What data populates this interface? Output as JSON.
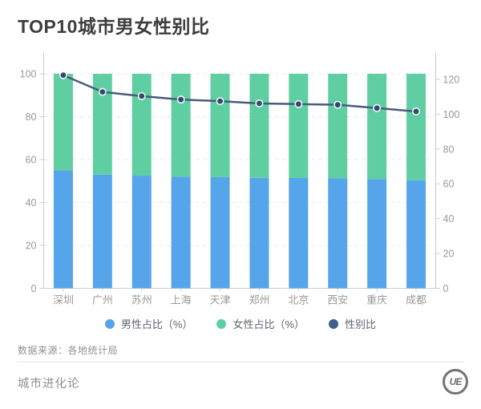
{
  "page": {
    "title": "TOP10城市男女性别比"
  },
  "chart_data": {
    "type": "bar",
    "subtype": "stacked-bar-with-line-overlay",
    "categories": [
      "深圳",
      "广州",
      "苏州",
      "上海",
      "天津",
      "郑州",
      "北京",
      "西安",
      "重庆",
      "成都"
    ],
    "series": [
      {
        "name": "男性占比（%）",
        "type": "bar",
        "stack": "total",
        "axis": "left",
        "color": "#56a4ea",
        "values": [
          55.0,
          53.0,
          52.5,
          52.0,
          51.8,
          51.5,
          51.4,
          51.3,
          50.9,
          50.4
        ]
      },
      {
        "name": "女性占比（%）",
        "type": "bar",
        "stack": "total",
        "axis": "left",
        "color": "#5fcfa3",
        "values": [
          45.0,
          47.0,
          47.5,
          48.0,
          48.2,
          48.5,
          48.6,
          48.7,
          49.1,
          49.6
        ]
      },
      {
        "name": "性别比",
        "type": "line",
        "axis": "right",
        "color": "#4a5b79",
        "marker_fill": "#2e4c6e",
        "values": [
          122.4,
          112.8,
          110.4,
          108.4,
          107.5,
          106.2,
          105.8,
          105.4,
          103.5,
          101.6
        ]
      }
    ],
    "left_axis": {
      "ticks": [
        0,
        20,
        40,
        60,
        80,
        100
      ],
      "range": [
        0,
        110
      ]
    },
    "right_axis": {
      "ticks": [
        0,
        20,
        40,
        60,
        80,
        100,
        120
      ],
      "range": [
        0,
        135
      ]
    },
    "grid": "horizontal dashed gridlines at left-axis ticks",
    "legend_position": "bottom-center",
    "title": "TOP10城市男女性别比",
    "xlabel": "",
    "ylabel": ""
  },
  "legend": {
    "items": [
      {
        "label": "男性占比（%）",
        "color": "#56a4ea"
      },
      {
        "label": "女性占比（%）",
        "color": "#5fcfa3"
      },
      {
        "label": "性别比",
        "color": "#3f5f8d"
      }
    ]
  },
  "footer": {
    "source": "数据来源：各地统计局",
    "brand": "城市进化论",
    "logo_text": "UE"
  },
  "colors": {
    "male_bar": "#56a4ea",
    "female_bar": "#5fcfa3",
    "ratio_line": "#4a5b79",
    "axis_text": "#999999",
    "axis_line": "#cccccc",
    "gridline": "#e4e4e4",
    "title_text": "#3d3d3d"
  }
}
